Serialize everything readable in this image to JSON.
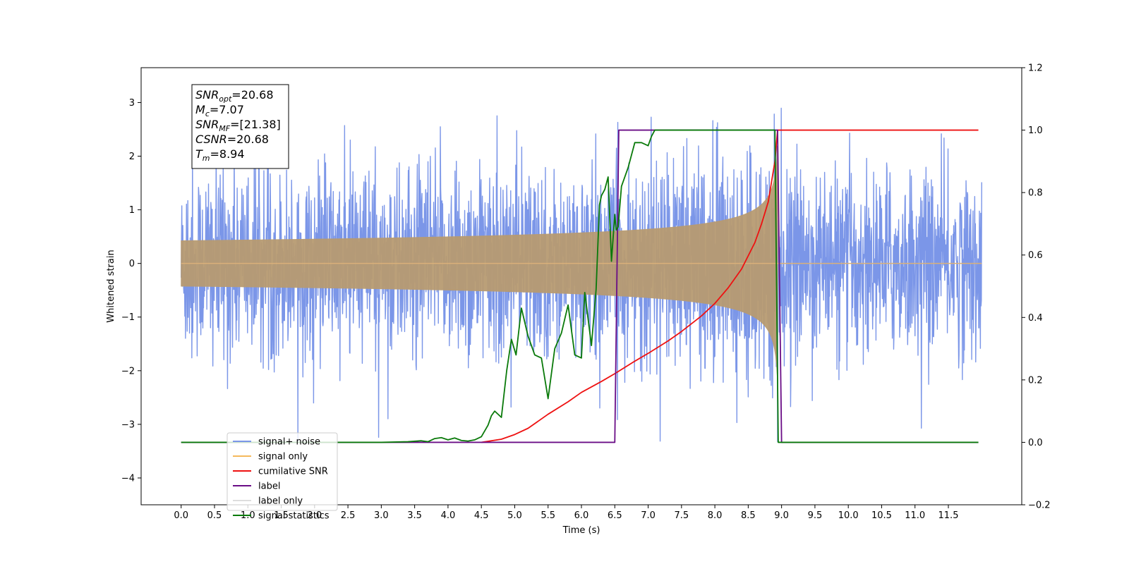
{
  "chart_data": {
    "type": "line",
    "xlabel": "Time (s)",
    "ylabel": "Whitened strain",
    "xlim": [
      -0.6,
      12.6
    ],
    "ylim": [
      -4.5,
      3.65
    ],
    "y2lim": [
      -0.2,
      1.2
    ],
    "x_ticks": [
      "0.0",
      "0.5",
      "1.0",
      "1.5",
      "2.0",
      "2.5",
      "3.0",
      "3.5",
      "4.0",
      "4.5",
      "5.0",
      "5.5",
      "6.0",
      "6.5",
      "7.0",
      "7.5",
      "8.0",
      "8.5",
      "9.0",
      "9.5",
      "10.0",
      "10.5",
      "11.0",
      "11.5"
    ],
    "y_ticks": [
      3,
      2,
      1,
      0,
      -1,
      -2,
      -3,
      -4
    ],
    "y_tick_labels": [
      "3",
      "2",
      "1",
      "0",
      "−1",
      "−2",
      "−3",
      "−4"
    ],
    "y2_ticks": [
      "1.2",
      "1.0",
      "0.8",
      "0.6",
      "0.4",
      "0.2",
      "0.0",
      "−0.2"
    ],
    "y2_tick_values": [
      1.2,
      1.0,
      0.8,
      0.6,
      0.4,
      0.2,
      0.0,
      -0.2
    ],
    "legend_placement": "lower-left",
    "annotation": {
      "lines": [
        {
          "sym": "SNR",
          "sub": "opt",
          "value": "=20.68"
        },
        {
          "sym": "M",
          "sub": "c",
          "value": "=7.07"
        },
        {
          "sym": "SNR",
          "sub": "MF",
          "value": "=[21.38]"
        },
        {
          "sym": "CSNR",
          "sub": "",
          "value": "=20.68"
        },
        {
          "sym": "T",
          "sub": "m",
          "value": "=8.94"
        }
      ]
    },
    "series": [
      {
        "name": "signal+ noise",
        "color": "#7b96e8",
        "axis": "left",
        "kind": "noise",
        "x_range": [
          0.0,
          12.0
        ],
        "std": 0.85
      },
      {
        "name": "signal only",
        "color": "#f5b95c",
        "axis": "left",
        "kind": "chirp",
        "x_range": [
          0.0,
          8.94
        ],
        "merger": 8.94,
        "peak": 2.2
      },
      {
        "name": "cumilative SNR",
        "color": "#ee1111",
        "axis": "right",
        "x": [
          4.5,
          4.8,
          5.0,
          5.2,
          5.5,
          5.8,
          6.0,
          6.3,
          6.5,
          6.8,
          7.0,
          7.3,
          7.5,
          7.8,
          8.0,
          8.2,
          8.4,
          8.6,
          8.7,
          8.8,
          8.9,
          8.94,
          9.0,
          11.95
        ],
        "y": [
          0.0,
          0.01,
          0.025,
          0.045,
          0.09,
          0.13,
          0.16,
          0.195,
          0.22,
          0.26,
          0.285,
          0.325,
          0.355,
          0.405,
          0.445,
          0.495,
          0.555,
          0.64,
          0.7,
          0.77,
          0.9,
          1.0,
          1.0,
          1.0
        ]
      },
      {
        "name": "label",
        "color": "#6a0d86",
        "axis": "right",
        "x": [
          0.0,
          6.5,
          6.56,
          8.94,
          9.0,
          11.95
        ],
        "y": [
          0.0,
          0.0,
          1.0,
          1.0,
          0.0,
          0.0
        ]
      },
      {
        "name": "label only",
        "color": "#dddddd",
        "axis": "right",
        "x": [],
        "y": []
      },
      {
        "name": "signal statistics",
        "color": "#0a7a0a",
        "axis": "right",
        "x": [
          0.0,
          3.0,
          3.4,
          3.6,
          3.7,
          3.8,
          3.9,
          4.0,
          4.1,
          4.2,
          4.3,
          4.4,
          4.5,
          4.6,
          4.65,
          4.7,
          4.8,
          4.88,
          4.95,
          5.02,
          5.1,
          5.2,
          5.3,
          5.4,
          5.5,
          5.6,
          5.7,
          5.8,
          5.9,
          6.0,
          6.05,
          6.15,
          6.22,
          6.27,
          6.3,
          6.35,
          6.4,
          6.45,
          6.5,
          6.52,
          6.55,
          6.6,
          6.7,
          6.8,
          6.9,
          7.0,
          7.05,
          7.1,
          7.2,
          7.3,
          8.9,
          8.95,
          9.0,
          11.95
        ],
        "y": [
          0.0,
          0.0,
          0.002,
          0.005,
          0.002,
          0.012,
          0.015,
          0.008,
          0.014,
          0.006,
          0.004,
          0.008,
          0.018,
          0.055,
          0.085,
          0.1,
          0.08,
          0.23,
          0.33,
          0.28,
          0.43,
          0.34,
          0.28,
          0.27,
          0.14,
          0.3,
          0.35,
          0.44,
          0.28,
          0.27,
          0.48,
          0.31,
          0.49,
          0.76,
          0.79,
          0.81,
          0.85,
          0.58,
          0.73,
          0.68,
          0.69,
          0.82,
          0.88,
          0.96,
          0.96,
          0.95,
          0.98,
          1.0,
          1.0,
          1.0,
          1.0,
          0.0,
          0.0,
          0.0
        ]
      }
    ]
  }
}
